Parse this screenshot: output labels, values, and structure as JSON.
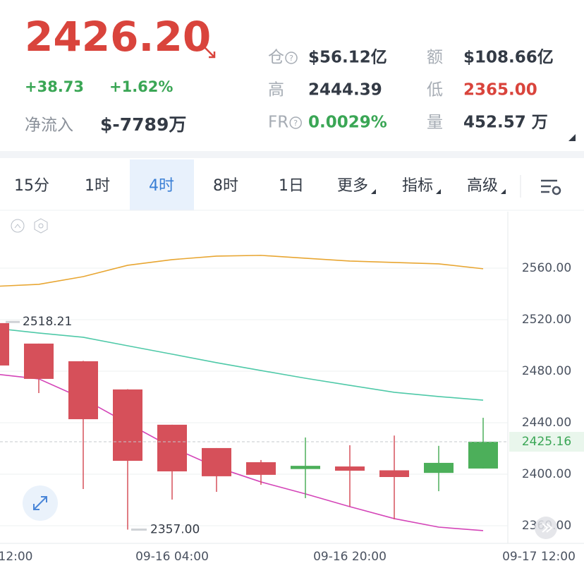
{
  "header": {
    "price": "2426.20",
    "change": "+38.73",
    "change_pct": "+1.62%",
    "inflow_label": "净流入",
    "inflow_value": "$-7789万",
    "stats": [
      {
        "label": "仓",
        "value": "$56.12亿",
        "help": true,
        "color": "#333a45"
      },
      {
        "label": "额",
        "value": "$108.66亿",
        "help": false,
        "color": "#333a45"
      },
      {
        "label": "高",
        "value": "2444.39",
        "help": false,
        "color": "#333a45"
      },
      {
        "label": "低",
        "value": "2365.00",
        "help": false,
        "color": "#d9443c"
      },
      {
        "label": "FR",
        "value": "0.0029%",
        "help": true,
        "color": "#3aa655"
      },
      {
        "label": "量",
        "value": "452.57 万",
        "help": false,
        "color": "#333a45"
      }
    ]
  },
  "tabs": {
    "items": [
      "15分",
      "1时",
      "4时",
      "8时",
      "1日",
      "更多",
      "指标",
      "高级"
    ],
    "selected": 2,
    "dropdowns": [
      5,
      6,
      7
    ]
  },
  "chart": {
    "type": "candlestick",
    "ylim": [
      2346.3,
      2603.8
    ],
    "yticks": [
      {
        "value": 2360,
        "label": "2360.00"
      },
      {
        "value": 2400,
        "label": "2400.00"
      },
      {
        "value": 2440,
        "label": "2440.00"
      },
      {
        "value": 2480,
        "label": "2480.00"
      },
      {
        "value": 2520,
        "label": "2520.00"
      },
      {
        "value": 2560,
        "label": "2560.00"
      }
    ],
    "x_labels": [
      "12:00",
      "09-16 04:00",
      "09-16 20:00",
      "09-17 12:00"
    ],
    "candles": [
      {
        "open": 2517.3,
        "high": 2518.2,
        "low": 2484.4,
        "close": 2484.4
      },
      {
        "open": 2501.4,
        "high": 2501.4,
        "low": 2463,
        "close": 2474
      },
      {
        "open": 2487.7,
        "high": 2488,
        "low": 2388.5,
        "close": 2442.7
      },
      {
        "open": 2465.8,
        "high": 2466,
        "low": 2357,
        "close": 2410.4
      },
      {
        "open": 2438.4,
        "high": 2438.4,
        "low": 2380.3,
        "close": 2402.2
      },
      {
        "open": 2420.3,
        "high": 2420.3,
        "low": 2386.3,
        "close": 2398.4
      },
      {
        "open": 2409.3,
        "high": 2411,
        "low": 2391.8,
        "close": 2399.5
      },
      {
        "open": 2404,
        "high": 2428.5,
        "low": 2381.4,
        "close": 2406.5
      },
      {
        "open": 2406,
        "high": 2422.5,
        "low": 2375,
        "close": 2402.7
      },
      {
        "open": 2403,
        "high": 2430,
        "low": 2365,
        "close": 2397.8
      },
      {
        "open": 2401,
        "high": 2422,
        "low": 2386.8,
        "close": 2408.8
      },
      {
        "open": 2404.4,
        "high": 2443.8,
        "low": 2404.4,
        "close": 2425.2
      }
    ],
    "ma": [
      {
        "color": "#e8a632",
        "values": [
          2545.8,
          2547.4,
          2553.4,
          2562.2,
          2566.6,
          2569.3,
          2569.9,
          2567.7,
          2565.5,
          2564.4,
          2563.3,
          2559.5
        ]
      },
      {
        "color": "#4fc9a8",
        "values": [
          2513.4,
          2509.6,
          2506.3,
          2499.7,
          2493.2,
          2486.6,
          2480.5,
          2474.5,
          2469,
          2463.6,
          2460.3,
          2457.5
        ]
      },
      {
        "color": "#d445b8",
        "values": [
          2477.8,
          2474,
          2458.6,
          2439.5,
          2420.8,
          2405.5,
          2394,
          2384.7,
          2374.8,
          2365.5,
          2358.9,
          2356.2
        ]
      }
    ],
    "high_marker": {
      "value": 2518.21,
      "label": "2518.21"
    },
    "low_marker": {
      "value": 2357,
      "label": "2357.00"
    },
    "current": {
      "value": 2425.16,
      "label": "2425.16"
    },
    "up_color": "#4caf5a",
    "down_color": "#d6505a"
  }
}
